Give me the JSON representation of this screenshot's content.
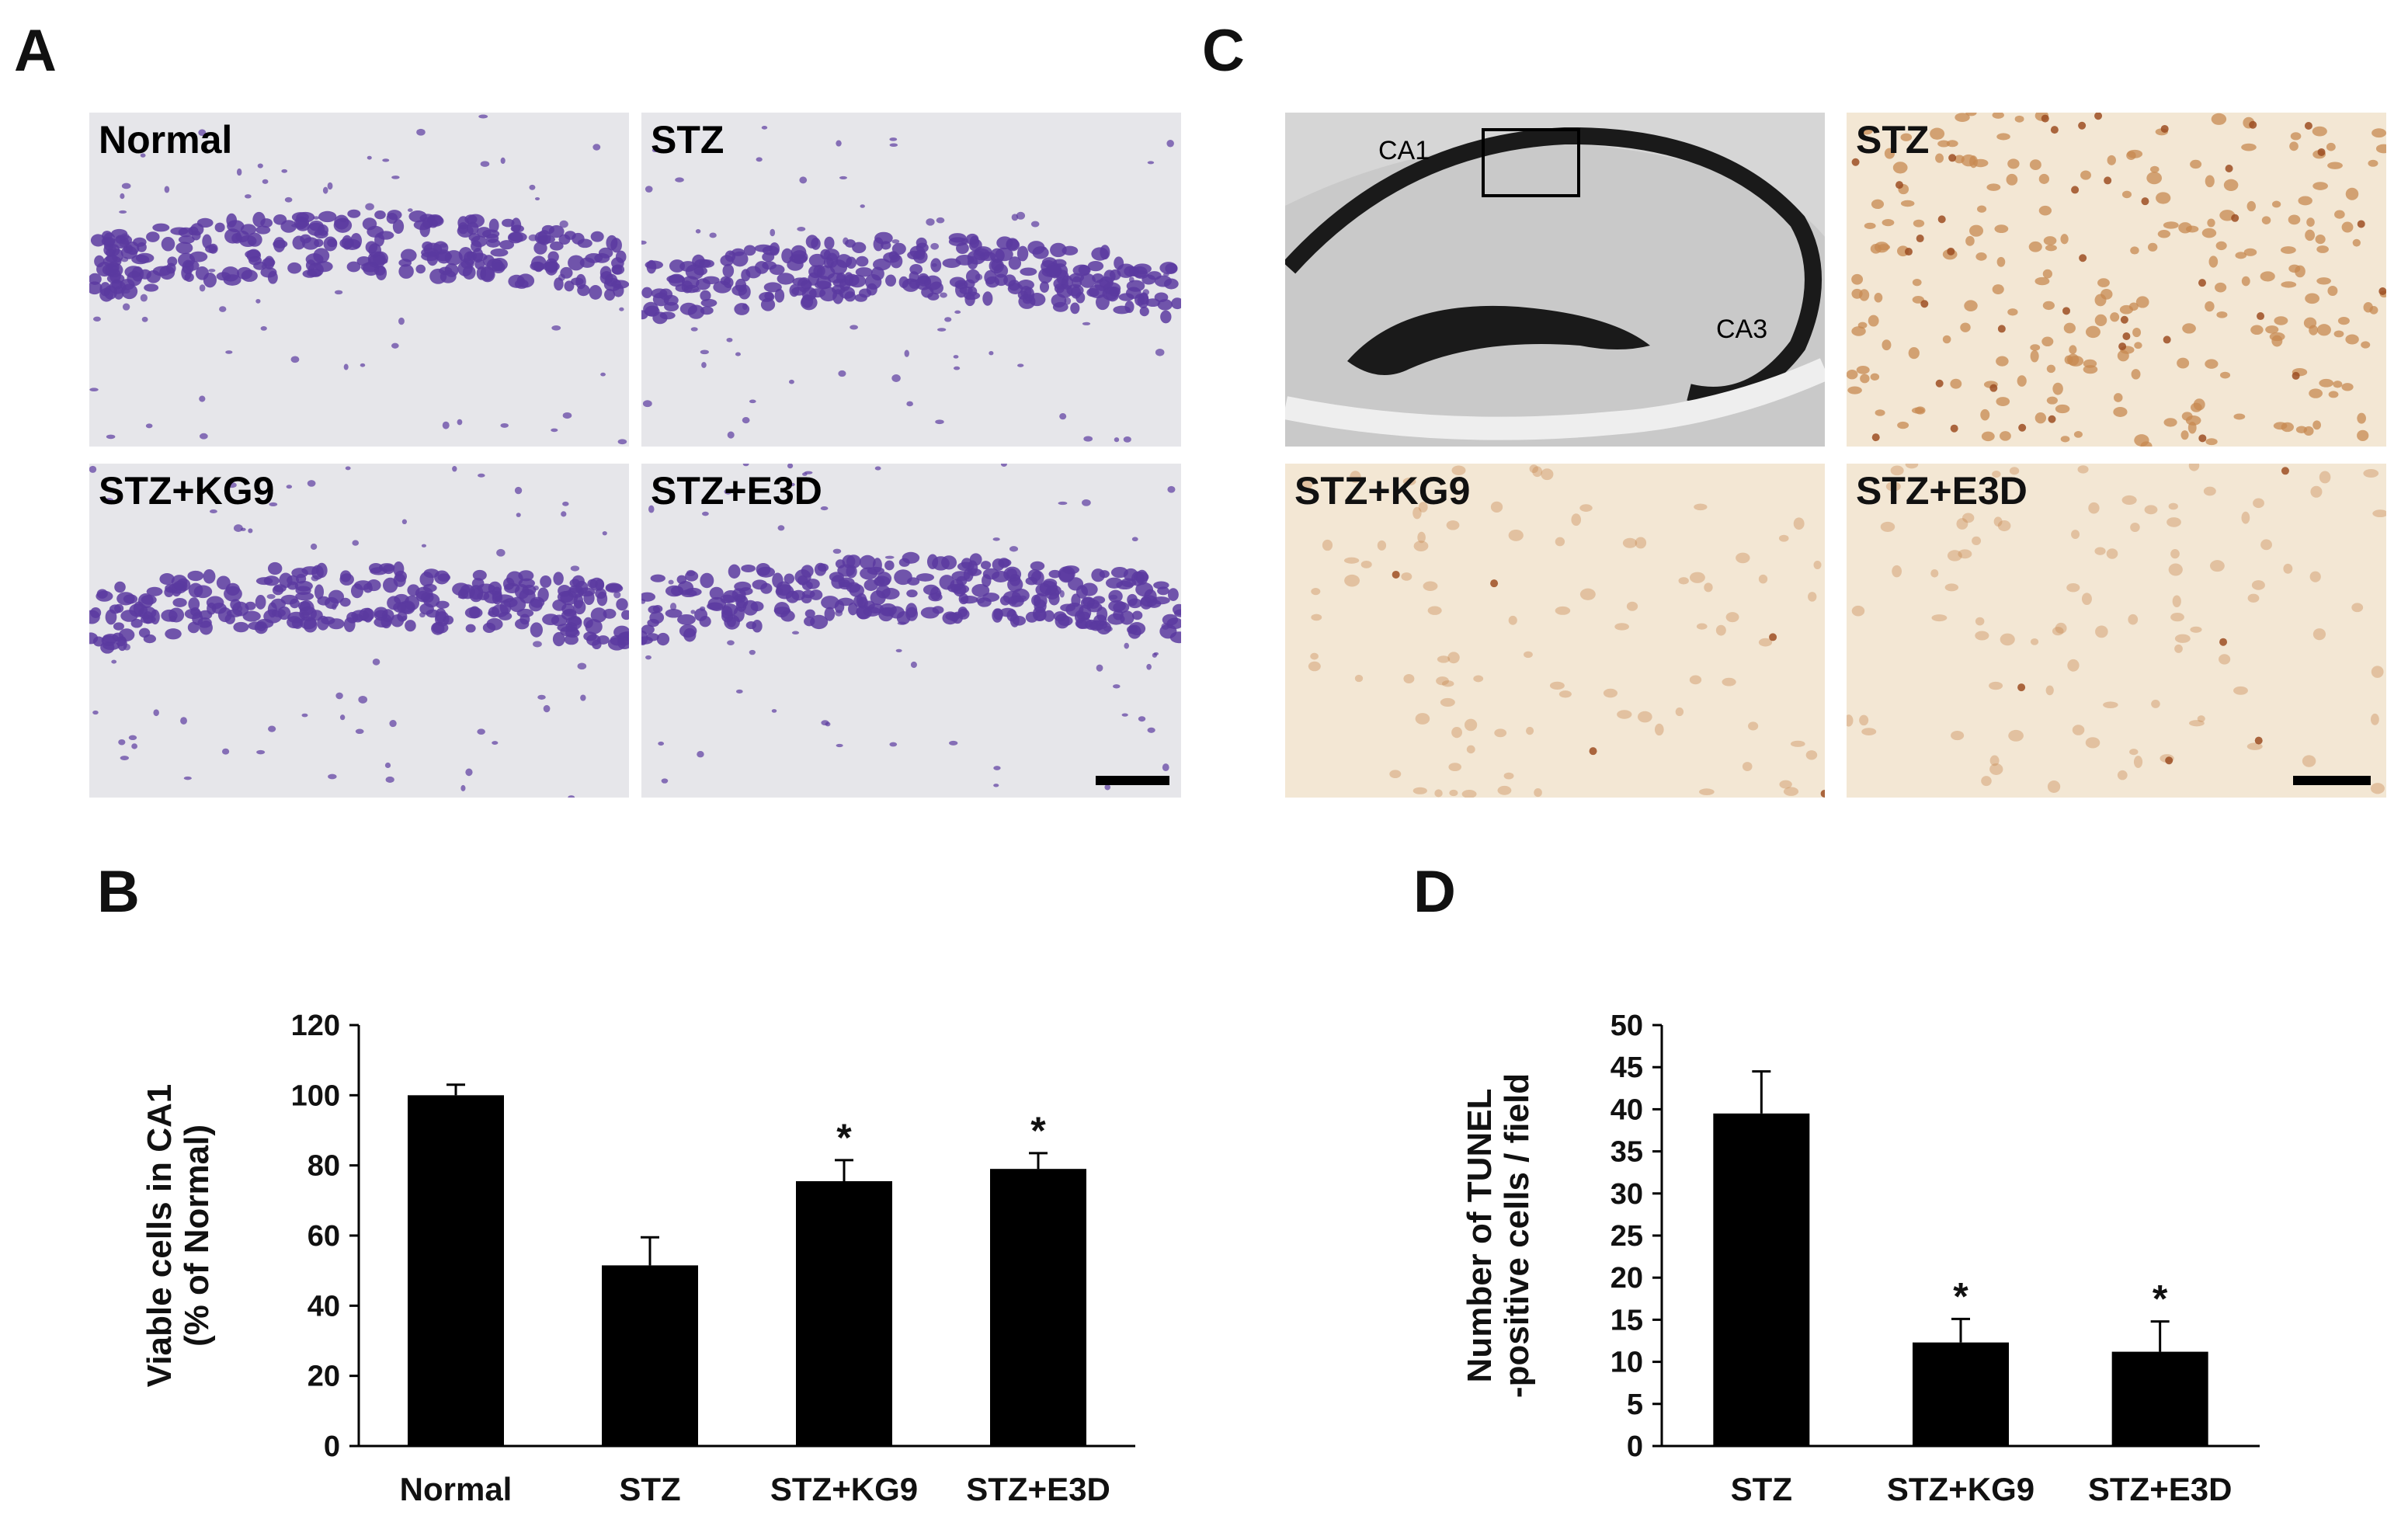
{
  "panels": {
    "A": {
      "letter": "A",
      "images": [
        {
          "label": "Normal"
        },
        {
          "label": "STZ"
        },
        {
          "label": "STZ+KG9"
        },
        {
          "label": "STZ+E3D"
        }
      ]
    },
    "C": {
      "letter": "C",
      "overview_labels": {
        "ca1": "CA1",
        "ca3": "CA3"
      },
      "images": [
        {
          "label": ""
        },
        {
          "label": "STZ"
        },
        {
          "label": "STZ+KG9"
        },
        {
          "label": "STZ+E3D"
        }
      ]
    },
    "B": {
      "letter": "B"
    },
    "D": {
      "letter": "D"
    }
  },
  "colors": {
    "bar": "#000000",
    "nissl_bg": "#e6e6ea",
    "nissl_cell": "#5b3aa0",
    "tunel_bg": "#f3e7d4",
    "tunel_cell": "#c78a52",
    "tunel_dark": "#9c4e22"
  },
  "chart_data": [
    {
      "id": "B",
      "type": "bar",
      "categories": [
        "Normal",
        "STZ",
        "STZ+KG9",
        "STZ+E3D"
      ],
      "values": [
        100,
        51.5,
        75.5,
        79
      ],
      "errors": [
        3,
        8,
        6,
        4.5
      ],
      "significance": [
        "",
        "",
        "*",
        "*"
      ],
      "ylabel": [
        "Viable cells in CA1",
        "(% of Normal)"
      ],
      "ylim": [
        0,
        120
      ],
      "yticks": [
        0,
        20,
        40,
        60,
        80,
        100,
        120
      ],
      "grid": false,
      "legend": false
    },
    {
      "id": "D",
      "type": "bar",
      "categories": [
        "STZ",
        "STZ+KG9",
        "STZ+E3D"
      ],
      "values": [
        39.5,
        12.3,
        11.2
      ],
      "errors": [
        5,
        2.8,
        3.6
      ],
      "significance": [
        "",
        "*",
        "*"
      ],
      "ylabel": [
        "Number of TUNEL",
        "-positive cells / field"
      ],
      "ylim": [
        0,
        50
      ],
      "yticks": [
        0,
        5,
        10,
        15,
        20,
        25,
        30,
        35,
        40,
        45,
        50
      ],
      "grid": false,
      "legend": false
    }
  ]
}
